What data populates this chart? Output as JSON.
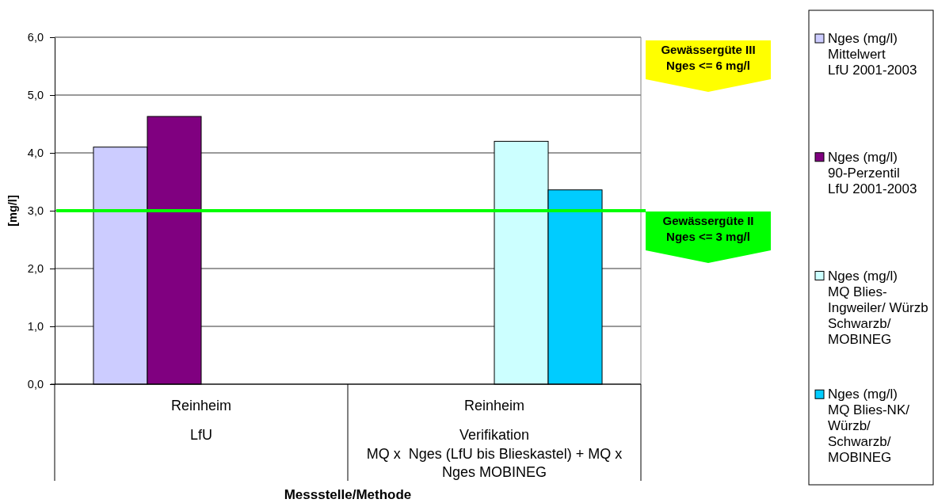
{
  "chart_data": {
    "type": "bar",
    "xlabel": "Messstelle/Methode",
    "ylabel": "[mg/l]",
    "categories": [
      "Reinheim\nLfU",
      "Reinheim\nVerifikation\nMQ x  Nges (LfU bis Blieskastel) + MQ x\nNges MOBINEG"
    ],
    "series": [
      {
        "name": "Nges (mg/l)\nMittelwert\nLfU 2001-2003",
        "color": "#ccccff",
        "values": [
          4.1,
          null
        ]
      },
      {
        "name": "Nges (mg/l)\n90-Perzentil\nLfU 2001-2003",
        "color": "#800080",
        "values": [
          4.63,
          null
        ]
      },
      {
        "name": "Nges (mg/l)\nMQ Blies-\nIngweiler/ Würzb\nSchwarzb/\nMOBINEG",
        "color": "#ccffff",
        "values": [
          null,
          4.2
        ]
      },
      {
        "name": "Nges (mg/l)\nMQ Blies-NK/\nWürzb/\nSchwarzb/\nMOBINEG",
        "color": "#00ccff",
        "values": [
          null,
          3.36
        ]
      }
    ],
    "ylim": [
      0,
      6
    ],
    "yticks": [
      {
        "value": 0,
        "label": "0,0"
      },
      {
        "value": 1,
        "label": "1,0"
      },
      {
        "value": 2,
        "label": "2,0"
      },
      {
        "value": 3,
        "label": "3,0"
      },
      {
        "value": 4,
        "label": "4,0"
      },
      {
        "value": 5,
        "label": "5,0"
      },
      {
        "value": 6,
        "label": "6,0"
      }
    ],
    "grid": "y",
    "legend": "right",
    "ref_lines": [
      {
        "axis": "y",
        "value": 3,
        "color": "#00ff00",
        "label": "Gewässergüte II\nNges <= 3 mg/l"
      }
    ],
    "annotations": [
      "Gewässergüte III\nNges <= 6 mg/l"
    ]
  }
}
